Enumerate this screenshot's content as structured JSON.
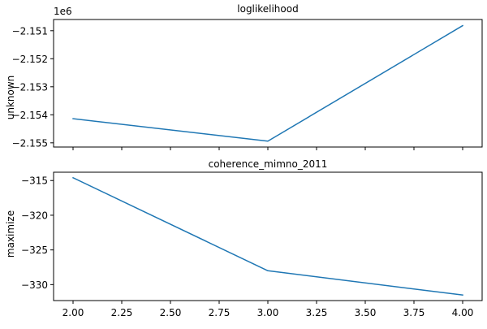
{
  "chart_data": [
    {
      "type": "line",
      "title": "loglikelihood",
      "ylabel": "unknown",
      "xlabel": "",
      "y_offset_label": "1e6",
      "x": [
        2.0,
        3.0,
        4.0
      ],
      "series": [
        {
          "values": [
            -2154140,
            -2154940,
            -2150820
          ],
          "color": "#1f77b4"
        }
      ],
      "xlim": [
        1.9,
        4.1
      ],
      "ylim": [
        -2155150,
        -2150600
      ],
      "y_ticks": [
        -2155000,
        -2154000,
        -2153000,
        -2152000,
        -2151000
      ],
      "y_tick_labels": [
        "−2.155",
        "−2.154",
        "−2.153",
        "−2.152",
        "−2.151"
      ],
      "x_ticks": [
        2.0,
        2.25,
        2.5,
        2.75,
        3.0,
        3.25,
        3.5,
        3.75,
        4.0
      ],
      "x_tick_labels": [],
      "grid": false
    },
    {
      "type": "line",
      "title": "coherence_mimno_2011",
      "ylabel": "maximize",
      "xlabel": "",
      "x": [
        2.0,
        3.0,
        4.0
      ],
      "series": [
        {
          "values": [
            -314.6,
            -328.0,
            -331.5
          ],
          "color": "#1f77b4"
        }
      ],
      "xlim": [
        1.9,
        4.1
      ],
      "ylim": [
        -332.3,
        -313.8
      ],
      "y_ticks": [
        -330,
        -325,
        -320,
        -315
      ],
      "y_tick_labels": [
        "−330",
        "−325",
        "−320",
        "−315"
      ],
      "x_ticks": [
        2.0,
        2.25,
        2.5,
        2.75,
        3.0,
        3.25,
        3.5,
        3.75,
        4.0
      ],
      "x_tick_labels": [
        "2.00",
        "2.25",
        "2.50",
        "2.75",
        "3.00",
        "3.25",
        "3.50",
        "3.75",
        "4.00"
      ],
      "grid": false
    }
  ]
}
